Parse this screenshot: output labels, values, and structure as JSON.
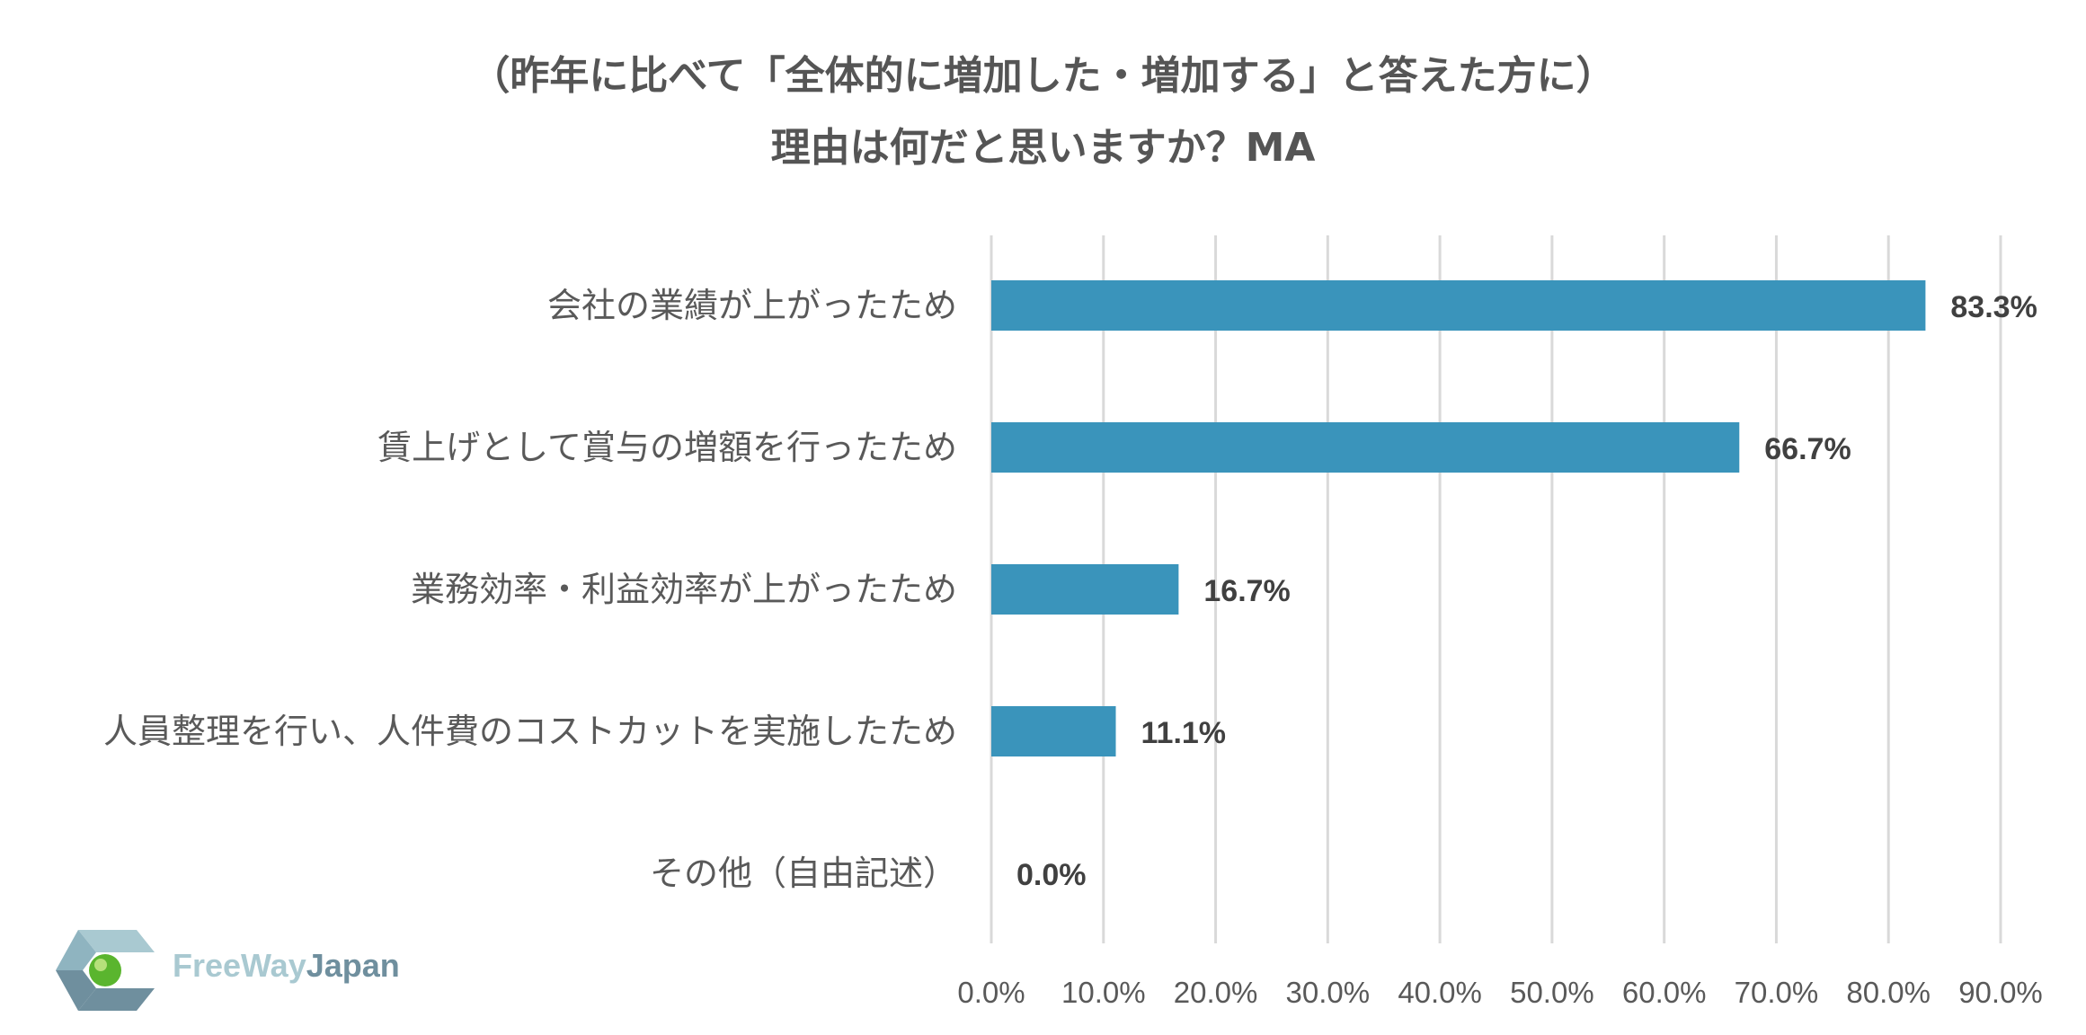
{
  "chart_data": {
    "type": "bar",
    "orientation": "horizontal",
    "title_lines": [
      "（昨年に比べて「全体的に増加した・増加する」と答えた方に）",
      "理由は何だと思いますか？MA"
    ],
    "categories": [
      "会社の業績が上がったため",
      "賃上げとして賞与の増額を行ったため",
      "業務効率・利益効率が上がったため",
      "人員整理を行い、人件費のコストカットを実施したため",
      "その他（自由記述）"
    ],
    "values": [
      83.3,
      66.7,
      16.7,
      11.1,
      0.0
    ],
    "value_labels": [
      "83.3%",
      "66.7%",
      "16.7%",
      "11.1%",
      "0.0%"
    ],
    "xlim": [
      0,
      90
    ],
    "ticks": [
      0,
      10,
      20,
      30,
      40,
      50,
      60,
      70,
      80,
      90
    ],
    "tick_labels": [
      "0.0%",
      "10.0%",
      "20.0%",
      "30.0%",
      "40.0%",
      "50.0%",
      "60.0%",
      "70.0%",
      "80.0%",
      "90.0%"
    ],
    "bar_color": "#3a94bb",
    "grid": true,
    "legend": "none"
  },
  "logo": {
    "text_free": "FreeWay",
    "text_japan": "Japan",
    "colors": {
      "light": "#a9c9d1",
      "dark": "#6f8f9e",
      "green": "#5ab52e"
    }
  }
}
